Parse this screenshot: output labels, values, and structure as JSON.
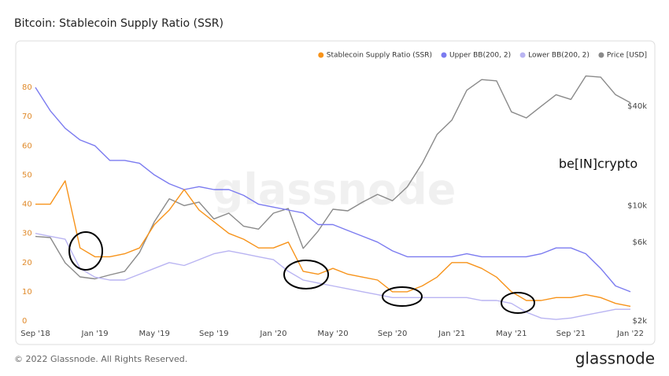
{
  "chart_data": {
    "type": "line",
    "title": "Bitcoin: Stablecoin Supply Ratio (SSR)",
    "watermark": "glassnode",
    "logo": "be[IN]crypto",
    "footer": "© 2022 Glassnode. All Rights Reserved.",
    "brand": "glassnode",
    "categories": [
      "Sep '18",
      null,
      null,
      null,
      "Jan '19",
      null,
      null,
      null,
      "May '19",
      null,
      null,
      null,
      "Sep '19",
      null,
      null,
      null,
      "Jan '20",
      null,
      null,
      null,
      "May '20",
      null,
      null,
      null,
      "Sep '20",
      null,
      null,
      null,
      "Jan '21",
      null,
      null,
      null,
      "May '21",
      null,
      null,
      null,
      "Sep '21",
      null,
      null,
      null,
      "Jan '22"
    ],
    "ylim": [
      0,
      90
    ],
    "yticks": [
      0,
      10,
      20,
      30,
      40,
      50,
      60,
      70,
      80
    ],
    "y2lim": [
      2000,
      78200
    ],
    "y2log": true,
    "y2ticks": [
      {
        "value": 2000,
        "label": "$2k"
      },
      {
        "value": 6000,
        "label": "$6k"
      },
      {
        "value": 10000,
        "label": "$10k"
      },
      {
        "value": 40000,
        "label": "$40k"
      }
    ],
    "grid": false,
    "legend": "top-right",
    "series": [
      {
        "name": "Stablecoin Supply Ratio (SSR)",
        "color": "#f7931a",
        "values": [
          40,
          40,
          48,
          25,
          22,
          22,
          23,
          25,
          33,
          38,
          45,
          38,
          34,
          30,
          28,
          25,
          25,
          27,
          17,
          16,
          18,
          16,
          15,
          14,
          10,
          10,
          12,
          15,
          20,
          20,
          18,
          15,
          10,
          7,
          7,
          8,
          8,
          9,
          8,
          6,
          5
        ]
      },
      {
        "name": "Upper BB(200, 2)",
        "color": "#7b7bf0",
        "values": [
          80,
          72,
          66,
          62,
          60,
          55,
          55,
          54,
          50,
          47,
          45,
          46,
          45,
          45,
          43,
          40,
          39,
          38,
          37,
          33,
          33,
          31,
          29,
          27,
          24,
          22,
          22,
          22,
          22,
          23,
          22,
          22,
          22,
          22,
          23,
          25,
          25,
          23,
          18,
          12,
          10
        ]
      },
      {
        "name": "Lower BB(200, 2)",
        "color": "#b9b4f2",
        "values": [
          30,
          29,
          28,
          18,
          15,
          14,
          14,
          16,
          18,
          20,
          19,
          21,
          23,
          24,
          23,
          22,
          21,
          17,
          14,
          13,
          12,
          11,
          10,
          9,
          8,
          8,
          8,
          8,
          8,
          8,
          7,
          7,
          6,
          3,
          1,
          0.5,
          1,
          2,
          3,
          4,
          4
        ]
      },
      {
        "name": "Price [USD]",
        "color": "#8a8a8a",
        "axis": "y2",
        "values": [
          6500,
          6400,
          4500,
          3700,
          3600,
          3800,
          4000,
          5200,
          8000,
          11000,
          10000,
          10500,
          8300,
          9000,
          7500,
          7200,
          9000,
          9600,
          5500,
          7000,
          9500,
          9300,
          10500,
          11700,
          10700,
          13000,
          18000,
          27000,
          33000,
          50000,
          58000,
          57000,
          37000,
          34000,
          40000,
          47000,
          44000,
          61000,
          60000,
          47000,
          42000
        ]
      }
    ]
  }
}
